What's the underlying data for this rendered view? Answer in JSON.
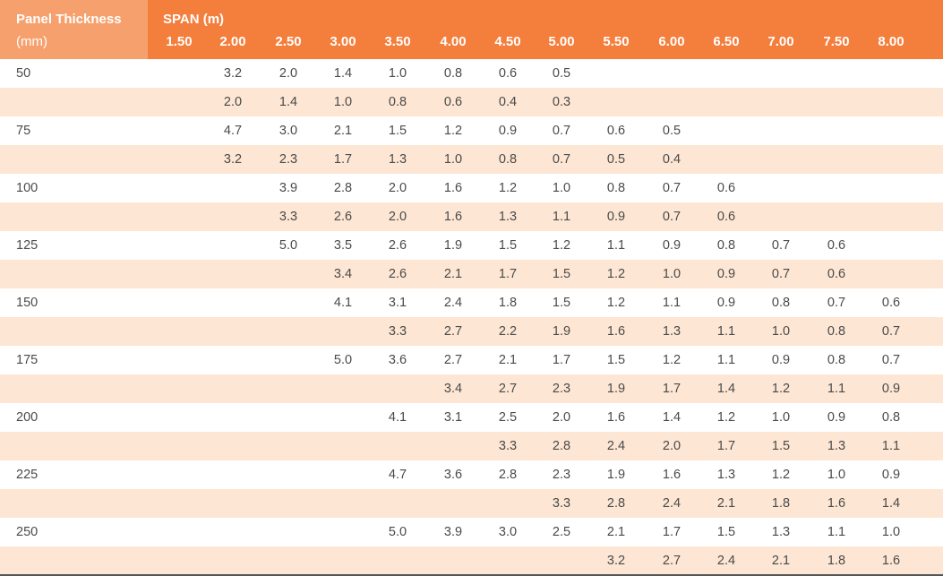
{
  "header": {
    "col1_line1": "Panel Thickness",
    "col1_line2": "(mm)",
    "span_label": "SPAN (m)",
    "spans": [
      "1.50",
      "2.00",
      "2.50",
      "3.00",
      "3.50",
      "4.00",
      "4.50",
      "5.00",
      "5.50",
      "6.00",
      "6.50",
      "7.00",
      "7.50",
      "8.00"
    ]
  },
  "rows": [
    {
      "thickness": "50",
      "values": [
        "",
        "3.2",
        "2.0",
        "1.4",
        "1.0",
        "0.8",
        "0.6",
        "0.5",
        "",
        "",
        "",
        "",
        "",
        ""
      ]
    },
    {
      "thickness": "",
      "values": [
        "",
        "2.0",
        "1.4",
        "1.0",
        "0.8",
        "0.6",
        "0.4",
        "0.3",
        "",
        "",
        "",
        "",
        "",
        ""
      ]
    },
    {
      "thickness": "75",
      "values": [
        "",
        "4.7",
        "3.0",
        "2.1",
        "1.5",
        "1.2",
        "0.9",
        "0.7",
        "0.6",
        "0.5",
        "",
        "",
        "",
        ""
      ]
    },
    {
      "thickness": "",
      "values": [
        "",
        "3.2",
        "2.3",
        "1.7",
        "1.3",
        "1.0",
        "0.8",
        "0.7",
        "0.5",
        "0.4",
        "",
        "",
        "",
        ""
      ]
    },
    {
      "thickness": "100",
      "values": [
        "",
        "",
        "3.9",
        "2.8",
        "2.0",
        "1.6",
        "1.2",
        "1.0",
        "0.8",
        "0.7",
        "0.6",
        "",
        "",
        ""
      ]
    },
    {
      "thickness": "",
      "values": [
        "",
        "",
        "3.3",
        "2.6",
        "2.0",
        "1.6",
        "1.3",
        "1.1",
        "0.9",
        "0.7",
        "0.6",
        "",
        "",
        ""
      ]
    },
    {
      "thickness": "125",
      "values": [
        "",
        "",
        "5.0",
        "3.5",
        "2.6",
        "1.9",
        "1.5",
        "1.2",
        "1.1",
        "0.9",
        "0.8",
        "0.7",
        "0.6",
        ""
      ]
    },
    {
      "thickness": "",
      "values": [
        "",
        "",
        "",
        "3.4",
        "2.6",
        "2.1",
        "1.7",
        "1.5",
        "1.2",
        "1.0",
        "0.9",
        "0.7",
        "0.6",
        ""
      ]
    },
    {
      "thickness": "150",
      "values": [
        "",
        "",
        "",
        "4.1",
        "3.1",
        "2.4",
        "1.8",
        "1.5",
        "1.2",
        "1.1",
        "0.9",
        "0.8",
        "0.7",
        "0.6"
      ]
    },
    {
      "thickness": "",
      "values": [
        "",
        "",
        "",
        "",
        "3.3",
        "2.7",
        "2.2",
        "1.9",
        "1.6",
        "1.3",
        "1.1",
        "1.0",
        "0.8",
        "0.7"
      ]
    },
    {
      "thickness": "175",
      "values": [
        "",
        "",
        "",
        "5.0",
        "3.6",
        "2.7",
        "2.1",
        "1.7",
        "1.5",
        "1.2",
        "1.1",
        "0.9",
        "0.8",
        "0.7"
      ]
    },
    {
      "thickness": "",
      "values": [
        "",
        "",
        "",
        "",
        "",
        "3.4",
        "2.7",
        "2.3",
        "1.9",
        "1.7",
        "1.4",
        "1.2",
        "1.1",
        "0.9"
      ]
    },
    {
      "thickness": "200",
      "values": [
        "",
        "",
        "",
        "",
        "4.1",
        "3.1",
        "2.5",
        "2.0",
        "1.6",
        "1.4",
        "1.2",
        "1.0",
        "0.9",
        "0.8"
      ]
    },
    {
      "thickness": "",
      "values": [
        "",
        "",
        "",
        "",
        "",
        "",
        "3.3",
        "2.8",
        "2.4",
        "2.0",
        "1.7",
        "1.5",
        "1.3",
        "1.1"
      ]
    },
    {
      "thickness": "225",
      "values": [
        "",
        "",
        "",
        "",
        "4.7",
        "3.6",
        "2.8",
        "2.3",
        "1.9",
        "1.6",
        "1.3",
        "1.2",
        "1.0",
        "0.9"
      ]
    },
    {
      "thickness": "",
      "values": [
        "",
        "",
        "",
        "",
        "",
        "",
        "",
        "3.3",
        "2.8",
        "2.4",
        "2.1",
        "1.8",
        "1.6",
        "1.4"
      ]
    },
    {
      "thickness": "250",
      "values": [
        "",
        "",
        "",
        "",
        "5.0",
        "3.9",
        "3.0",
        "2.5",
        "2.1",
        "1.7",
        "1.5",
        "1.3",
        "1.1",
        "1.0"
      ]
    },
    {
      "thickness": "",
      "values": [
        "",
        "",
        "",
        "",
        "",
        "",
        "",
        "",
        "3.2",
        "2.7",
        "2.4",
        "2.1",
        "1.8",
        "1.6"
      ]
    }
  ]
}
